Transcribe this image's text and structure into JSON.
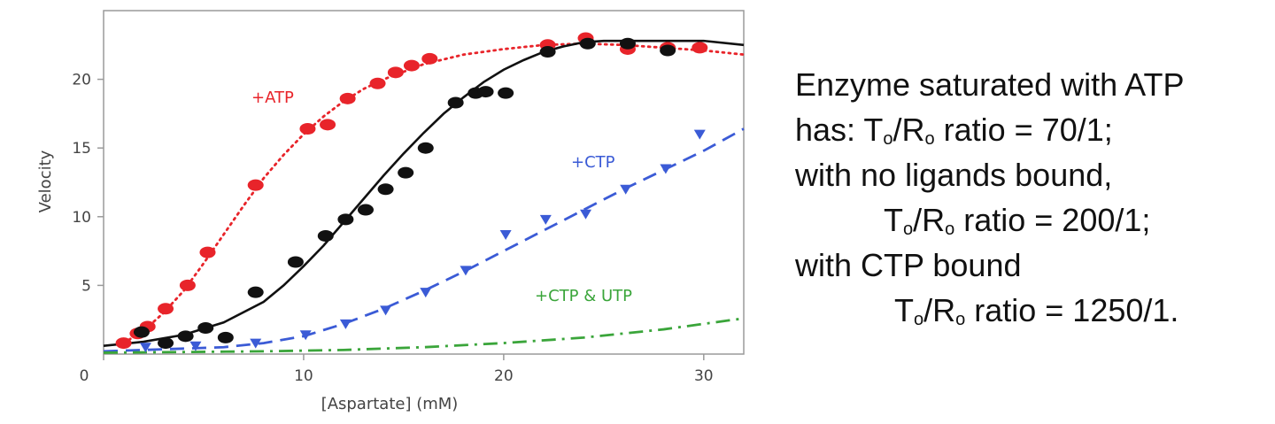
{
  "chart_data": {
    "type": "scatter",
    "title": "",
    "xlabel": "[Aspartate] (mM)",
    "ylabel": "Velocity",
    "xlim": [
      0,
      32
    ],
    "ylim": [
      0,
      25
    ],
    "xticks": [
      0,
      10,
      20,
      30
    ],
    "yticks": [
      5,
      10,
      15,
      20
    ],
    "grid": false,
    "series": [
      {
        "name": "+ATP",
        "color": "#e8242a",
        "marker": "circle",
        "line_style": "dotted",
        "points": [
          [
            1,
            0.8
          ],
          [
            1.7,
            1.5
          ],
          [
            2.2,
            2.0
          ],
          [
            3.1,
            3.3
          ],
          [
            4.2,
            5.0
          ],
          [
            5.2,
            7.4
          ],
          [
            7.6,
            12.3
          ],
          [
            10.2,
            16.4
          ],
          [
            11.2,
            16.7
          ],
          [
            12.2,
            18.6
          ],
          [
            13.7,
            19.7
          ],
          [
            14.6,
            20.5
          ],
          [
            15.4,
            21.0
          ],
          [
            16.3,
            21.5
          ],
          [
            22.2,
            22.5
          ],
          [
            24.1,
            23.0
          ],
          [
            26.2,
            22.2
          ],
          [
            28.2,
            22.3
          ],
          [
            29.8,
            22.3
          ]
        ],
        "curve": [
          [
            1,
            0.8
          ],
          [
            2,
            1.7
          ],
          [
            3,
            3.0
          ],
          [
            4,
            4.6
          ],
          [
            5,
            6.6
          ],
          [
            6,
            8.7
          ],
          [
            7,
            10.8
          ],
          [
            8,
            12.8
          ],
          [
            9,
            14.5
          ],
          [
            10,
            16.0
          ],
          [
            11,
            17.3
          ],
          [
            12,
            18.4
          ],
          [
            13,
            19.3
          ],
          [
            14,
            20.0
          ],
          [
            16,
            21.1
          ],
          [
            18,
            21.8
          ],
          [
            20,
            22.2
          ],
          [
            22,
            22.5
          ],
          [
            24,
            22.6
          ],
          [
            26,
            22.5
          ],
          [
            28,
            22.3
          ],
          [
            30,
            22.1
          ],
          [
            32,
            21.8
          ]
        ]
      },
      {
        "name": "",
        "color": "#111111",
        "marker": "circle",
        "line_style": "solid",
        "points": [
          [
            1.9,
            1.6
          ],
          [
            3.1,
            0.8
          ],
          [
            4.1,
            1.3
          ],
          [
            5.1,
            1.9
          ],
          [
            6.1,
            1.2
          ],
          [
            7.6,
            4.5
          ],
          [
            9.6,
            6.7
          ],
          [
            11.1,
            8.6
          ],
          [
            12.1,
            9.8
          ],
          [
            13.1,
            10.5
          ],
          [
            14.1,
            12.0
          ],
          [
            15.1,
            13.2
          ],
          [
            16.1,
            15.0
          ],
          [
            17.6,
            18.3
          ],
          [
            18.6,
            19.0
          ],
          [
            19.1,
            19.1
          ],
          [
            20.1,
            19.0
          ],
          [
            22.2,
            22.0
          ],
          [
            24.2,
            22.6
          ],
          [
            26.2,
            22.6
          ],
          [
            28.2,
            22.1
          ]
        ],
        "curve": [
          [
            0,
            0.6
          ],
          [
            2,
            0.9
          ],
          [
            4,
            1.4
          ],
          [
            6,
            2.3
          ],
          [
            8,
            3.8
          ],
          [
            9,
            5.0
          ],
          [
            10,
            6.4
          ],
          [
            11,
            7.9
          ],
          [
            12,
            9.6
          ],
          [
            13,
            11.3
          ],
          [
            14,
            13.0
          ],
          [
            15,
            14.6
          ],
          [
            16,
            16.1
          ],
          [
            17,
            17.5
          ],
          [
            18,
            18.7
          ],
          [
            19,
            19.8
          ],
          [
            20,
            20.7
          ],
          [
            21,
            21.4
          ],
          [
            22,
            22.0
          ],
          [
            23,
            22.4
          ],
          [
            24,
            22.7
          ],
          [
            25,
            22.8
          ],
          [
            26,
            22.8
          ],
          [
            28,
            22.8
          ],
          [
            30,
            22.8
          ],
          [
            32,
            22.5
          ]
        ]
      },
      {
        "name": "+CTP",
        "color": "#3b5bd6",
        "marker": "triangle-down",
        "line_style": "dashed",
        "points": [
          [
            2.1,
            0.5
          ],
          [
            4.6,
            0.6
          ],
          [
            7.6,
            0.8
          ],
          [
            10.1,
            1.4
          ],
          [
            12.1,
            2.2
          ],
          [
            14.1,
            3.2
          ],
          [
            16.1,
            4.5
          ],
          [
            18.1,
            6.1
          ],
          [
            20.1,
            8.7
          ],
          [
            22.1,
            9.8
          ],
          [
            24.1,
            10.2
          ],
          [
            26.1,
            12.0
          ],
          [
            28.1,
            13.5
          ],
          [
            29.8,
            16.0
          ]
        ],
        "curve": [
          [
            0,
            0.2
          ],
          [
            4,
            0.4
          ],
          [
            6,
            0.5
          ],
          [
            8,
            0.8
          ],
          [
            10,
            1.3
          ],
          [
            12,
            2.2
          ],
          [
            14,
            3.3
          ],
          [
            16,
            4.6
          ],
          [
            18,
            6.0
          ],
          [
            20,
            7.5
          ],
          [
            22,
            9.0
          ],
          [
            24,
            10.5
          ],
          [
            26,
            12.0
          ],
          [
            28,
            13.4
          ],
          [
            30,
            14.8
          ],
          [
            32,
            16.4
          ]
        ]
      },
      {
        "name": "+CTP & UTP",
        "color": "#3aa53a",
        "marker": "none",
        "line_style": "dash-dot",
        "points": [],
        "curve": [
          [
            0,
            0.1
          ],
          [
            4,
            0.15
          ],
          [
            8,
            0.2
          ],
          [
            12,
            0.3
          ],
          [
            16,
            0.5
          ],
          [
            20,
            0.8
          ],
          [
            24,
            1.2
          ],
          [
            28,
            1.8
          ],
          [
            32,
            2.6
          ]
        ]
      }
    ]
  },
  "notes": [
    {
      "text": "Enzyme saturated with ATP"
    },
    {
      "pre": "has:  T",
      "sub1": "o",
      "mid": "/R",
      "sub2": "o",
      "post": " ratio = 70/1;"
    },
    {
      "text": "with no ligands bound,"
    },
    {
      "pre": "T",
      "sub1": "o",
      "mid": "/R",
      "sub2": "o",
      "post": " ratio = 200/1;"
    },
    {
      "text": "with CTP bound"
    },
    {
      "pre": "T",
      "sub1": "o",
      "mid": "/R",
      "sub2": "o",
      "post": " ratio = 1250/1."
    }
  ]
}
